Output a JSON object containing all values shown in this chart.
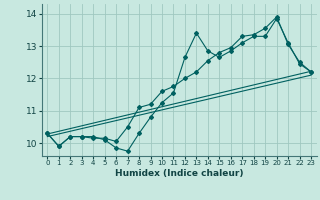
{
  "xlabel": "Humidex (Indice chaleur)",
  "bg_color": "#c8e8e0",
  "grid_color": "#a0c8c0",
  "line_color": "#006060",
  "xlim": [
    -0.5,
    23.5
  ],
  "ylim": [
    9.6,
    14.3
  ],
  "xticks": [
    0,
    1,
    2,
    3,
    4,
    5,
    6,
    7,
    8,
    9,
    10,
    11,
    12,
    13,
    14,
    15,
    16,
    17,
    18,
    19,
    20,
    21,
    22,
    23
  ],
  "yticks": [
    10,
    11,
    12,
    13,
    14
  ],
  "line1_x": [
    0,
    1,
    2,
    3,
    4,
    5,
    6,
    7,
    8,
    9,
    10,
    11,
    12,
    13,
    14,
    15,
    16,
    17,
    18,
    19,
    20,
    21,
    22,
    23
  ],
  "line1_y": [
    10.3,
    9.9,
    10.2,
    10.2,
    10.2,
    10.1,
    9.85,
    9.75,
    10.3,
    10.8,
    11.25,
    11.55,
    12.65,
    13.4,
    12.85,
    12.65,
    12.85,
    13.1,
    13.3,
    13.3,
    13.85,
    13.1,
    12.45,
    12.2
  ],
  "line2_x": [
    0,
    1,
    2,
    3,
    4,
    5,
    6,
    7,
    8,
    9,
    10,
    11,
    12,
    13,
    14,
    15,
    16,
    17,
    18,
    19,
    20,
    21,
    22,
    23
  ],
  "line2_y": [
    10.3,
    9.9,
    10.2,
    10.2,
    10.15,
    10.15,
    10.05,
    10.5,
    11.1,
    11.2,
    11.6,
    11.75,
    12.0,
    12.2,
    12.55,
    12.8,
    12.95,
    13.3,
    13.35,
    13.55,
    13.9,
    13.05,
    12.5,
    12.2
  ],
  "line3_x": [
    0,
    23
  ],
  "line3_y": [
    10.2,
    12.1
  ],
  "line4_x": [
    0,
    23
  ],
  "line4_y": [
    10.28,
    12.22
  ]
}
